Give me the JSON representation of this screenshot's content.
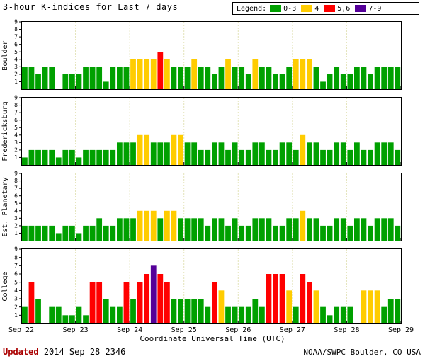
{
  "title": "3-hour K-indices for Last 7 days",
  "legend": {
    "label": "Legend:",
    "items": [
      {
        "label": "0-3",
        "range": [
          0,
          3
        ],
        "color": "#00a000"
      },
      {
        "label": "4",
        "range": [
          4,
          4
        ],
        "color": "#ffcc00"
      },
      {
        "label": "5,6",
        "range": [
          5,
          6
        ],
        "color": "#ff0000"
      },
      {
        "label": "7-9",
        "range": [
          7,
          9
        ],
        "color": "#550099"
      }
    ]
  },
  "x_axis": {
    "title": "Coordinate Universal Time (UTC)",
    "tick_labels": [
      "Sep 22",
      "Sep 23",
      "Sep 24",
      "Sep 25",
      "Sep 26",
      "Sep 27",
      "Sep 28",
      "Sep 29"
    ]
  },
  "footer": {
    "updated_label": "Updated",
    "updated_value": "2014 Sep 28 2346",
    "updated_color": "#aa0000",
    "credit": "NOAA/SWPC Boulder, CO USA"
  },
  "chart_data": [
    {
      "type": "bar",
      "station": "Boulder",
      "ylim": [
        0,
        9
      ],
      "yticks": [
        1,
        2,
        3,
        4,
        5,
        6,
        7,
        8,
        9
      ],
      "bars_per_day": 8,
      "days": [
        "Sep 22",
        "Sep 23",
        "Sep 24",
        "Sep 25",
        "Sep 26",
        "Sep 27",
        "Sep 28"
      ],
      "values": [
        3,
        3,
        2,
        3,
        3,
        0,
        2,
        2,
        2,
        3,
        3,
        3,
        1,
        3,
        3,
        3,
        4,
        4,
        4,
        4,
        5,
        4,
        3,
        3,
        3,
        4,
        3,
        3,
        2,
        3,
        4,
        3,
        3,
        2,
        4,
        3,
        3,
        2,
        2,
        3,
        4,
        4,
        4,
        3,
        1,
        2,
        3,
        2,
        2,
        3,
        3,
        2,
        3,
        3,
        3,
        3
      ]
    },
    {
      "type": "bar",
      "station": "Fredericksburg",
      "ylim": [
        0,
        9
      ],
      "yticks": [
        1,
        2,
        3,
        4,
        5,
        6,
        7,
        8,
        9
      ],
      "bars_per_day": 8,
      "days": [
        "Sep 22",
        "Sep 23",
        "Sep 24",
        "Sep 25",
        "Sep 26",
        "Sep 27",
        "Sep 28"
      ],
      "values": [
        1,
        2,
        2,
        2,
        2,
        1,
        2,
        2,
        1,
        2,
        2,
        2,
        2,
        2,
        3,
        3,
        3,
        4,
        4,
        3,
        3,
        3,
        4,
        4,
        3,
        3,
        2,
        2,
        3,
        3,
        2,
        3,
        2,
        2,
        3,
        3,
        2,
        2,
        3,
        3,
        2,
        4,
        3,
        3,
        2,
        2,
        3,
        3,
        2,
        3,
        2,
        2,
        3,
        3,
        3,
        2
      ]
    },
    {
      "type": "bar",
      "station": "Est. Planetary",
      "ylim": [
        0,
        9
      ],
      "yticks": [
        1,
        2,
        3,
        4,
        5,
        6,
        7,
        8,
        9
      ],
      "bars_per_day": 8,
      "days": [
        "Sep 22",
        "Sep 23",
        "Sep 24",
        "Sep 25",
        "Sep 26",
        "Sep 27",
        "Sep 28"
      ],
      "values": [
        2,
        2,
        2,
        2,
        2,
        1,
        2,
        2,
        1,
        2,
        2,
        3,
        2,
        2,
        3,
        3,
        3,
        4,
        4,
        4,
        3,
        4,
        4,
        3,
        3,
        3,
        3,
        2,
        3,
        3,
        2,
        3,
        2,
        2,
        3,
        3,
        3,
        2,
        2,
        3,
        3,
        4,
        3,
        3,
        2,
        2,
        3,
        3,
        2,
        3,
        3,
        2,
        3,
        3,
        3,
        2
      ]
    },
    {
      "type": "bar",
      "station": "College",
      "ylim": [
        0,
        9
      ],
      "yticks": [
        1,
        2,
        3,
        4,
        5,
        6,
        7,
        8,
        9
      ],
      "bars_per_day": 8,
      "days": [
        "Sep 22",
        "Sep 23",
        "Sep 24",
        "Sep 25",
        "Sep 26",
        "Sep 27",
        "Sep 28"
      ],
      "values": [
        2,
        5,
        3,
        0,
        2,
        2,
        1,
        1,
        2,
        1,
        5,
        5,
        3,
        2,
        2,
        5,
        3,
        5,
        6,
        7,
        6,
        5,
        3,
        3,
        3,
        3,
        3,
        2,
        5,
        4,
        2,
        2,
        2,
        2,
        3,
        2,
        6,
        6,
        6,
        4,
        2,
        6,
        5,
        4,
        2,
        1,
        2,
        2,
        2,
        0,
        4,
        4,
        4,
        2,
        3,
        3
      ]
    }
  ]
}
